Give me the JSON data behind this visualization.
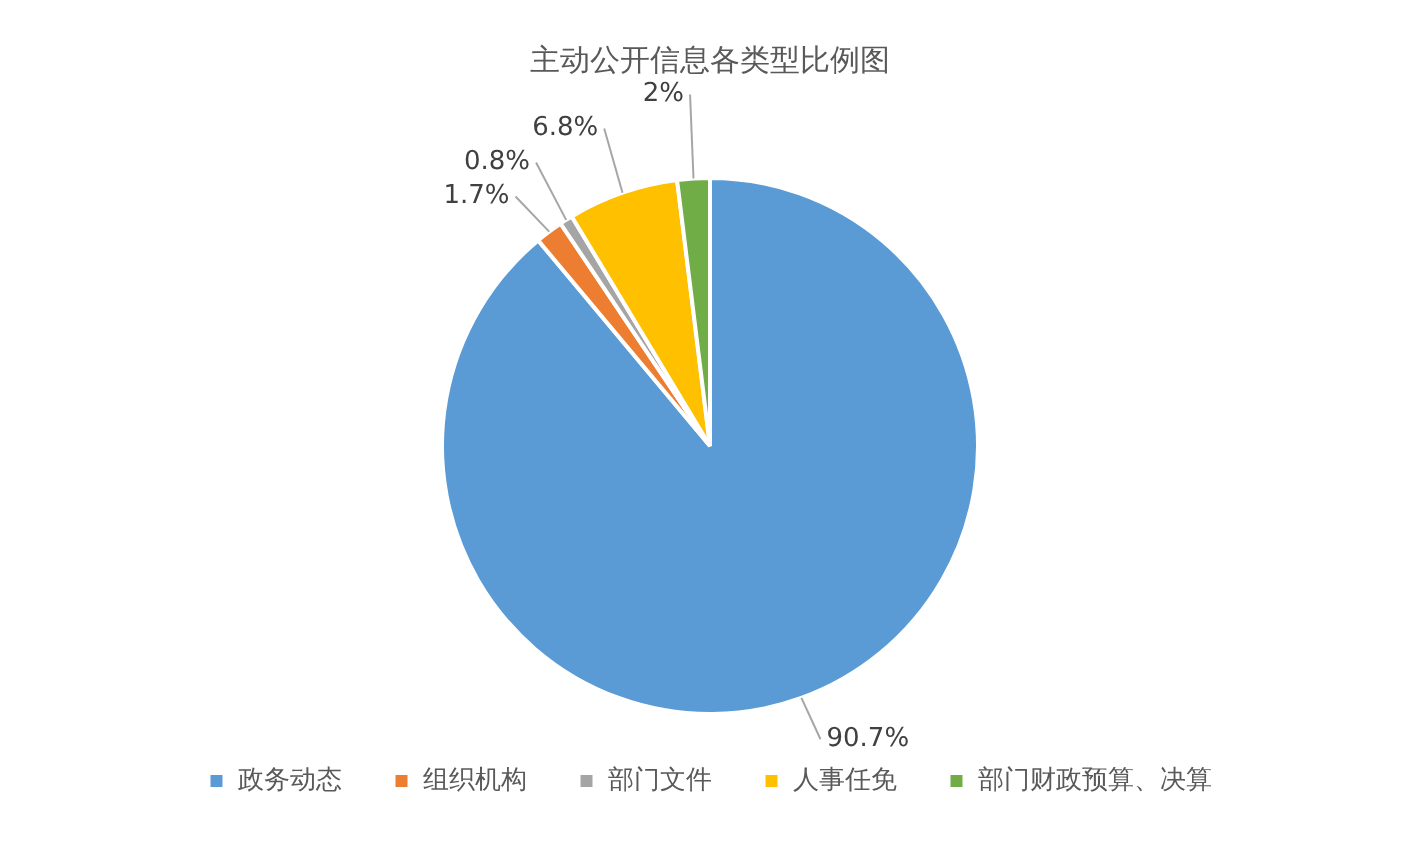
{
  "chart_data": {
    "type": "pie",
    "title": "主动公开信息各类型比例图",
    "categories": [
      "政务动态",
      "组织机构",
      "部门文件",
      "人事任免",
      "部门财政预算、决算"
    ],
    "values": [
      90.7,
      1.7,
      0.8,
      6.8,
      2
    ],
    "colors": [
      "#5b9bd5",
      "#ed7d31",
      "#a5a5a5",
      "#ffc000",
      "#70ad47"
    ],
    "value_labels": [
      "90.7%",
      "1.7%",
      "0.8%",
      "6.8%",
      "2%"
    ],
    "legend": "bottom"
  }
}
